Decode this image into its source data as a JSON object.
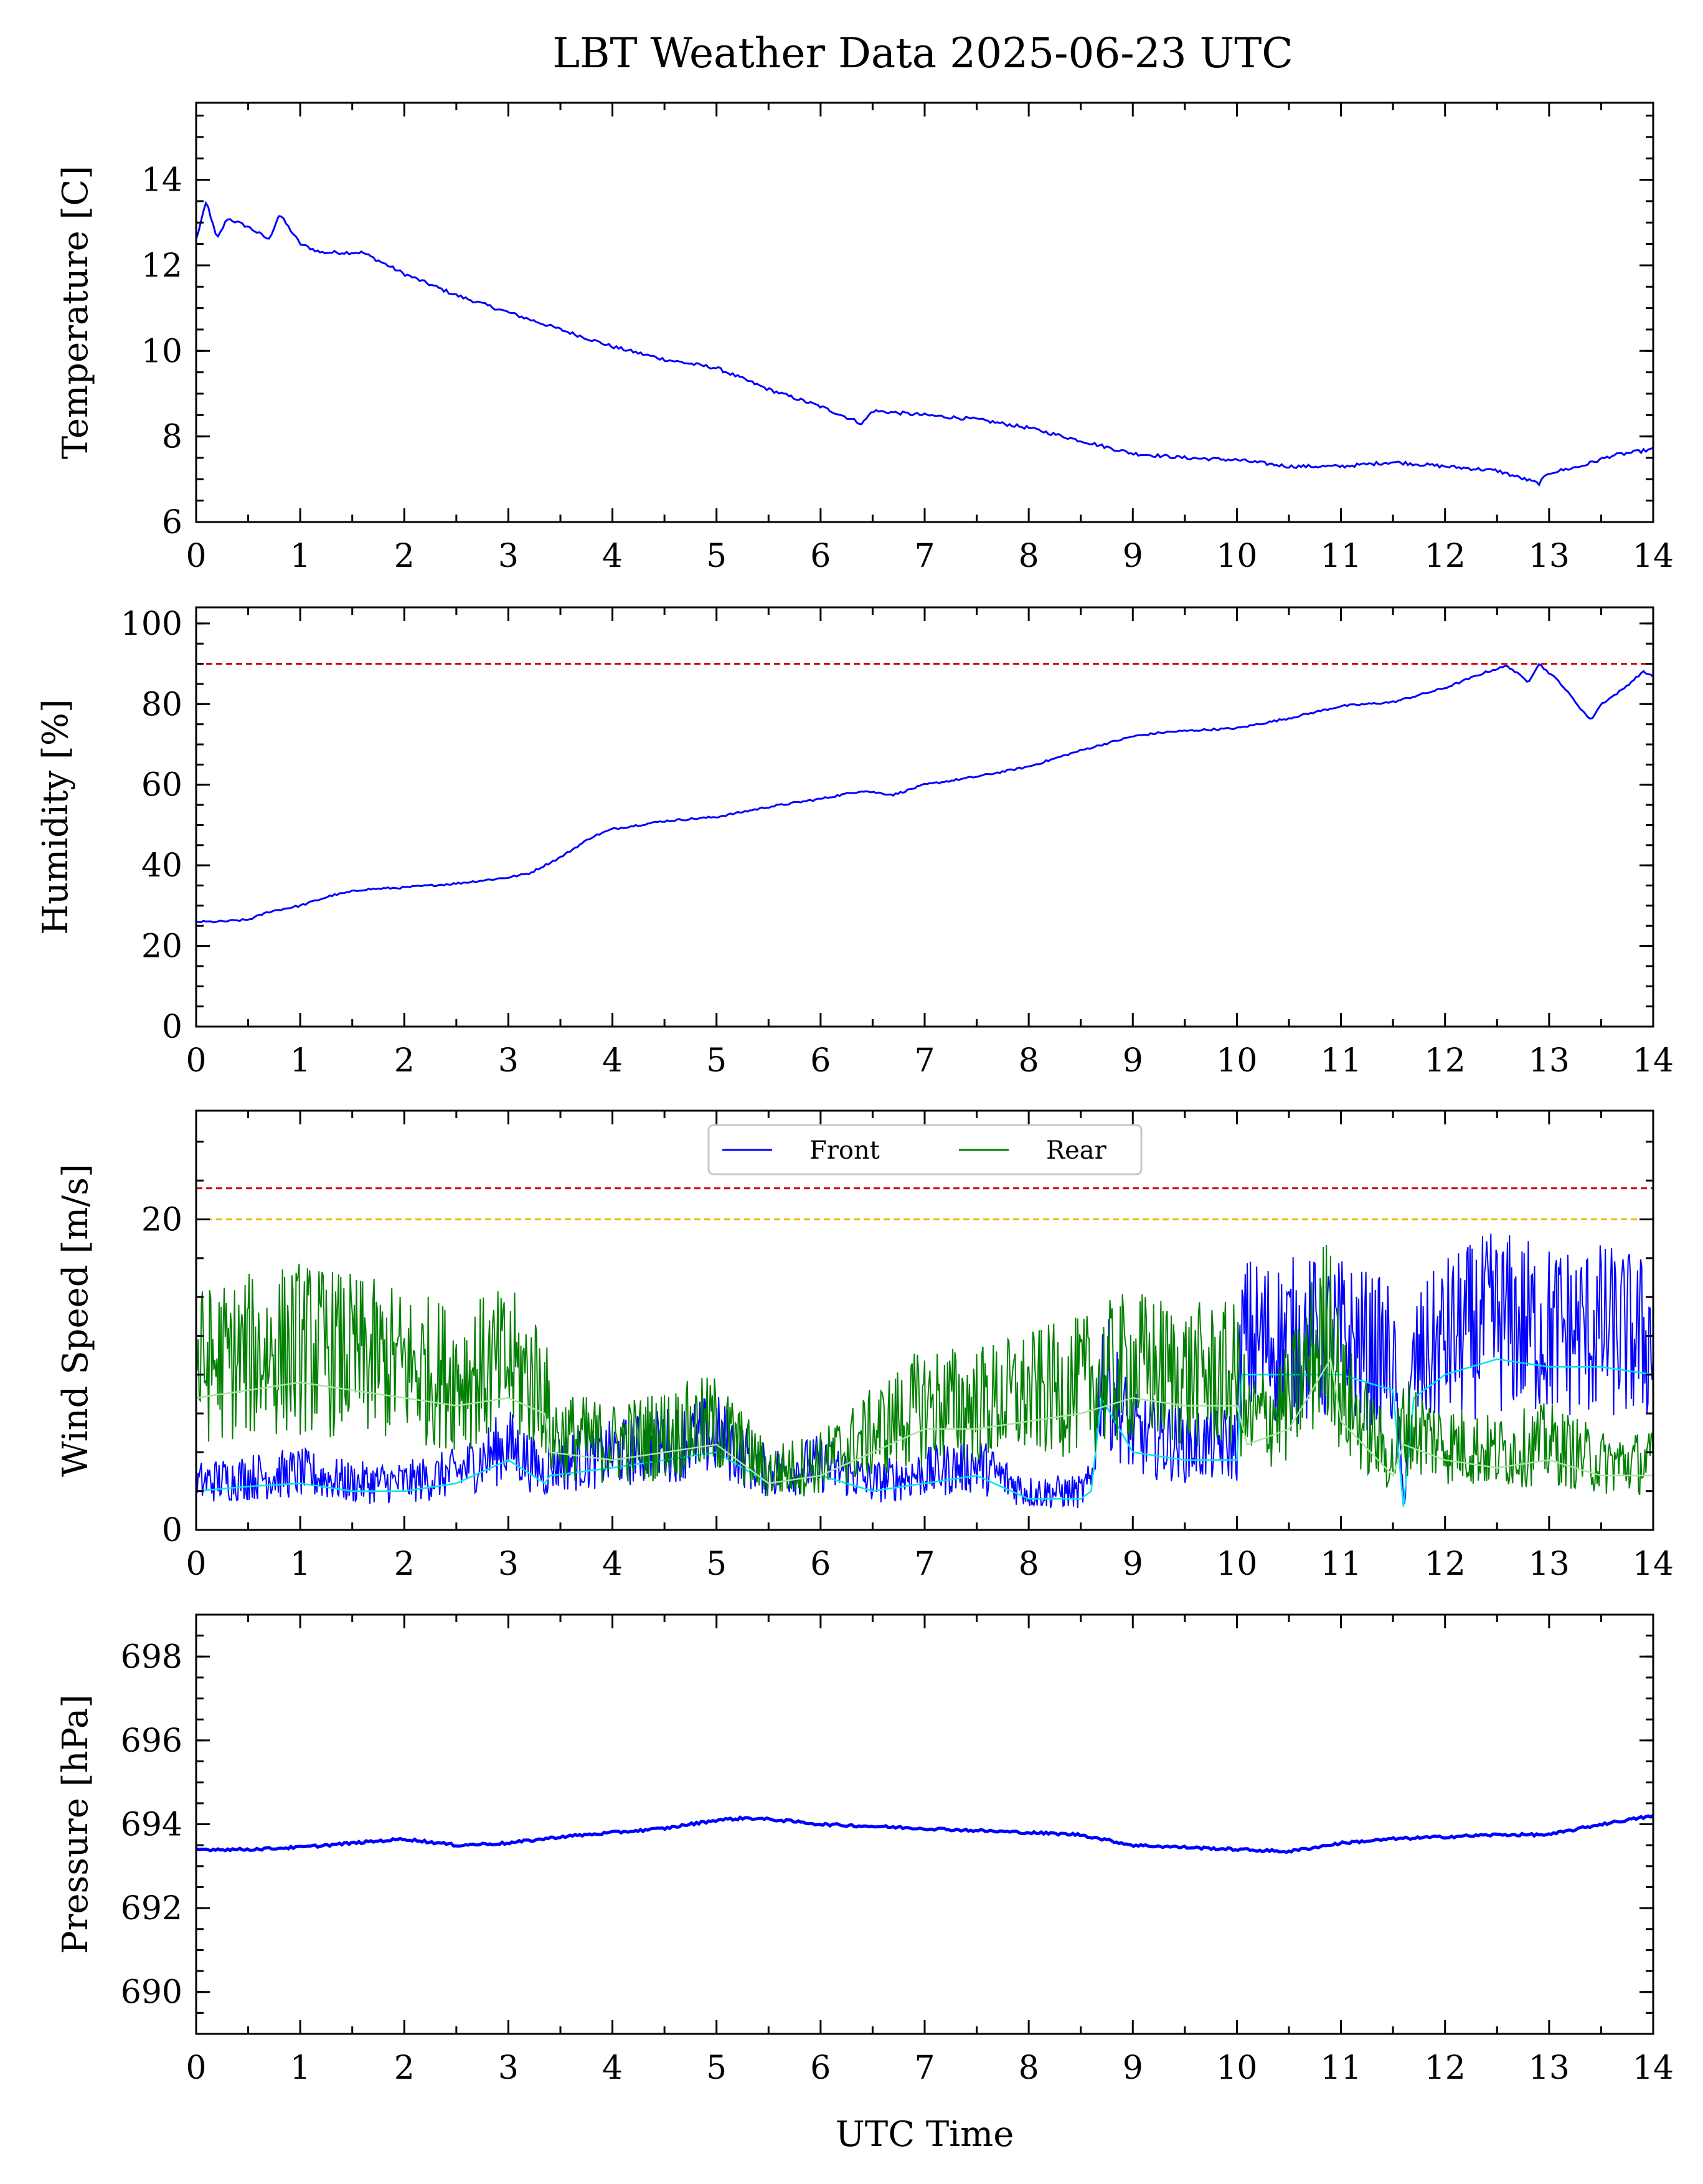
{
  "title": "LBT Weather Data 2025-06-23 UTC",
  "colors": {
    "series_blue": "#0000ff",
    "series_green": "#008000",
    "smooth_cyan": "#00e5ee",
    "smooth_lightgreen": "#a8e6a0",
    "limit_red": "#cc0000",
    "limit_orange": "#f0b400"
  },
  "chart_data": [
    {
      "type": "line",
      "ylabel": "Temperature [C]",
      "xlim": [
        0,
        14
      ],
      "ylim": [
        6,
        15.8
      ],
      "xticks": [
        0,
        1,
        2,
        3,
        4,
        5,
        6,
        7,
        8,
        9,
        10,
        11,
        12,
        13,
        14
      ],
      "yticks": [
        6,
        8,
        10,
        12,
        14
      ],
      "grid": false,
      "series": [
        {
          "x": [
            0,
            0.1,
            0.2,
            0.3,
            0.5,
            0.7,
            0.8,
            1.0,
            1.2,
            1.4,
            1.6,
            2.0,
            2.5,
            3.0,
            3.5,
            4.0,
            4.5,
            5.0,
            5.5,
            6.0,
            6.4,
            6.5,
            7.0,
            7.5,
            8.0,
            8.5,
            9.0,
            9.5,
            10.0,
            10.5,
            11.0,
            11.5,
            12.0,
            12.5,
            12.9,
            13.0,
            13.3,
            13.6,
            14.0
          ],
          "y": [
            12.6,
            13.5,
            12.6,
            13.1,
            12.9,
            12.6,
            13.2,
            12.5,
            12.3,
            12.3,
            12.3,
            11.8,
            11.3,
            10.9,
            10.5,
            10.1,
            9.8,
            9.6,
            9.1,
            8.7,
            8.3,
            8.6,
            8.5,
            8.4,
            8.2,
            7.9,
            7.6,
            7.5,
            7.45,
            7.3,
            7.3,
            7.4,
            7.3,
            7.2,
            6.9,
            7.15,
            7.3,
            7.55,
            7.7
          ]
        }
      ]
    },
    {
      "type": "line",
      "ylabel": "Humidity [%]",
      "xlim": [
        0,
        14
      ],
      "ylim": [
        0,
        104
      ],
      "xticks": [
        0,
        1,
        2,
        3,
        4,
        5,
        6,
        7,
        8,
        9,
        10,
        11,
        12,
        13,
        14
      ],
      "yticks": [
        0,
        20,
        40,
        60,
        80,
        100
      ],
      "grid": false,
      "hlines": [
        {
          "y": 90,
          "color": "limit_red"
        }
      ],
      "series": [
        {
          "x": [
            0,
            0.2,
            0.5,
            0.7,
            1.0,
            1.3,
            1.6,
            2.0,
            2.5,
            3.0,
            3.2,
            3.5,
            3.8,
            4.0,
            4.5,
            5.0,
            5.5,
            6.0,
            6.4,
            6.7,
            7.0,
            7.5,
            8.0,
            8.5,
            9.0,
            9.3,
            9.6,
            10.0,
            10.5,
            11.0,
            11.5,
            12.0,
            12.4,
            12.6,
            12.8,
            12.9,
            13.1,
            13.3,
            13.4,
            13.5,
            13.7,
            13.9,
            14.0
          ],
          "y": [
            26,
            26,
            26.5,
            28.5,
            30,
            32.5,
            34,
            34.5,
            35.5,
            37,
            38,
            42,
            47,
            49,
            51,
            52,
            54.5,
            56.5,
            58.5,
            57.5,
            60,
            62,
            64.5,
            68.5,
            72,
            73,
            73.5,
            74,
            76.5,
            79.5,
            80.5,
            84,
            88,
            89.5,
            85.5,
            90,
            85.5,
            79,
            76,
            80,
            83.5,
            88,
            87
          ]
        }
      ]
    },
    {
      "type": "line",
      "ylabel": "Wind Speed [m/s]",
      "xlim": [
        0,
        14
      ],
      "ylim": [
        0,
        27
      ],
      "xticks": [
        0,
        1,
        2,
        3,
        4,
        5,
        6,
        7,
        8,
        9,
        10,
        11,
        12,
        13,
        14
      ],
      "yticks": [
        0,
        20
      ],
      "grid": false,
      "legend_position": "top-center",
      "hlines": [
        {
          "y": 22,
          "color": "limit_red"
        },
        {
          "y": 20,
          "color": "limit_orange"
        }
      ],
      "series": [
        {
          "name": "Front",
          "color": "series_blue",
          "x": [
            0,
            0.5,
            1.0,
            1.5,
            2.0,
            2.5,
            3.0,
            3.35,
            3.4,
            4.0,
            4.5,
            5.0,
            5.5,
            6.0,
            6.5,
            7.0,
            7.5,
            8.0,
            8.5,
            8.6,
            8.7,
            9.0,
            9.5,
            10.0,
            10.05,
            10.5,
            11.0,
            11.5,
            11.6,
            11.7,
            12.0,
            12.5,
            13.0,
            13.5,
            14.0
          ],
          "y": [
            2.5,
            2.8,
            3.0,
            2.5,
            2.5,
            3.0,
            4.5,
            3.0,
            3.5,
            4.0,
            4.5,
            5.0,
            3.0,
            3.5,
            2.5,
            3.0,
            3.5,
            2.0,
            2.0,
            2.5,
            8.5,
            5.0,
            4.5,
            4.5,
            10.0,
            10.0,
            10.0,
            9.0,
            1.5,
            8.5,
            10.0,
            11.0,
            10.5,
            10.5,
            10.0
          ]
        },
        {
          "name": "Rear",
          "color": "series_green",
          "x": [
            0,
            0.5,
            1.0,
            1.5,
            2.0,
            2.5,
            3.0,
            3.35,
            3.4,
            4.0,
            4.5,
            5.0,
            5.5,
            6.0,
            6.5,
            7.0,
            7.5,
            8.0,
            8.5,
            9.0,
            9.5,
            10.0,
            10.1,
            10.5,
            10.9,
            11.0,
            11.5,
            11.6,
            12.0,
            12.5,
            13.0,
            13.5,
            14.0
          ],
          "y": [
            8.5,
            9.0,
            9.5,
            9.0,
            8.5,
            8.0,
            8.5,
            7.5,
            5.0,
            4.5,
            5.0,
            5.5,
            3.0,
            3.5,
            5.0,
            6.5,
            6.5,
            7.0,
            7.5,
            8.5,
            8.0,
            8.0,
            5.5,
            6.5,
            11.0,
            7.0,
            3.5,
            5.5,
            4.5,
            4.0,
            4.5,
            3.5,
            3.5
          ]
        }
      ]
    },
    {
      "type": "line",
      "ylabel": "Pressure [hPa]",
      "xlabel": "UTC Time",
      "xlim": [
        0,
        14
      ],
      "ylim": [
        689,
        699
      ],
      "xticks": [
        0,
        1,
        2,
        3,
        4,
        5,
        6,
        7,
        8,
        9,
        10,
        11,
        12,
        13,
        14
      ],
      "yticks": [
        690,
        692,
        694,
        696,
        698
      ],
      "grid": false,
      "series": [
        {
          "x": [
            0,
            0.5,
            1.0,
            1.5,
            2.0,
            2.5,
            3.0,
            3.5,
            4.0,
            4.5,
            5.0,
            5.3,
            5.6,
            6.0,
            6.5,
            7.0,
            7.5,
            8.0,
            8.5,
            9.0,
            9.5,
            10.0,
            10.5,
            11.0,
            11.5,
            12.0,
            12.5,
            13.0,
            13.5,
            14.0
          ],
          "y": [
            693.4,
            693.4,
            693.45,
            693.55,
            693.65,
            693.5,
            693.55,
            693.7,
            693.8,
            693.9,
            694.1,
            694.15,
            694.1,
            694.0,
            693.95,
            693.9,
            693.85,
            693.8,
            693.75,
            693.5,
            693.45,
            693.4,
            693.35,
            693.55,
            693.65,
            693.7,
            693.75,
            693.75,
            694.0,
            694.2
          ]
        }
      ]
    }
  ]
}
